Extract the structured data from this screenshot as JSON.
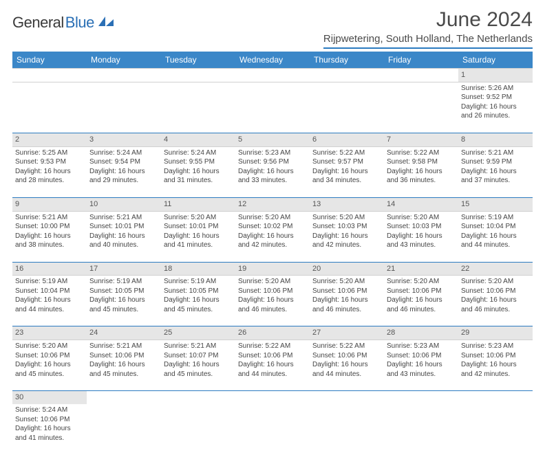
{
  "brand": {
    "part1": "General",
    "part2": "Blue"
  },
  "title": "June 2024",
  "location": "Rijpwetering, South Holland, The Netherlands",
  "colors": {
    "header_bg": "#3b87c8",
    "header_text": "#ffffff",
    "rule": "#2a7ac0",
    "daynum_bg": "#e6e6e6",
    "text": "#444444",
    "logo_blue": "#2a6fb5",
    "logo_gray": "#3a3a3a",
    "page_bg": "#ffffff"
  },
  "day_headers": [
    "Sunday",
    "Monday",
    "Tuesday",
    "Wednesday",
    "Thursday",
    "Friday",
    "Saturday"
  ],
  "weeks": [
    {
      "nums": [
        "",
        "",
        "",
        "",
        "",
        "",
        "1"
      ],
      "cells": [
        null,
        null,
        null,
        null,
        null,
        null,
        {
          "sr": "Sunrise: 5:26 AM",
          "ss": "Sunset: 9:52 PM",
          "d1": "Daylight: 16 hours",
          "d2": "and 26 minutes."
        }
      ]
    },
    {
      "nums": [
        "2",
        "3",
        "4",
        "5",
        "6",
        "7",
        "8"
      ],
      "cells": [
        {
          "sr": "Sunrise: 5:25 AM",
          "ss": "Sunset: 9:53 PM",
          "d1": "Daylight: 16 hours",
          "d2": "and 28 minutes."
        },
        {
          "sr": "Sunrise: 5:24 AM",
          "ss": "Sunset: 9:54 PM",
          "d1": "Daylight: 16 hours",
          "d2": "and 29 minutes."
        },
        {
          "sr": "Sunrise: 5:24 AM",
          "ss": "Sunset: 9:55 PM",
          "d1": "Daylight: 16 hours",
          "d2": "and 31 minutes."
        },
        {
          "sr": "Sunrise: 5:23 AM",
          "ss": "Sunset: 9:56 PM",
          "d1": "Daylight: 16 hours",
          "d2": "and 33 minutes."
        },
        {
          "sr": "Sunrise: 5:22 AM",
          "ss": "Sunset: 9:57 PM",
          "d1": "Daylight: 16 hours",
          "d2": "and 34 minutes."
        },
        {
          "sr": "Sunrise: 5:22 AM",
          "ss": "Sunset: 9:58 PM",
          "d1": "Daylight: 16 hours",
          "d2": "and 36 minutes."
        },
        {
          "sr": "Sunrise: 5:21 AM",
          "ss": "Sunset: 9:59 PM",
          "d1": "Daylight: 16 hours",
          "d2": "and 37 minutes."
        }
      ]
    },
    {
      "nums": [
        "9",
        "10",
        "11",
        "12",
        "13",
        "14",
        "15"
      ],
      "cells": [
        {
          "sr": "Sunrise: 5:21 AM",
          "ss": "Sunset: 10:00 PM",
          "d1": "Daylight: 16 hours",
          "d2": "and 38 minutes."
        },
        {
          "sr": "Sunrise: 5:21 AM",
          "ss": "Sunset: 10:01 PM",
          "d1": "Daylight: 16 hours",
          "d2": "and 40 minutes."
        },
        {
          "sr": "Sunrise: 5:20 AM",
          "ss": "Sunset: 10:01 PM",
          "d1": "Daylight: 16 hours",
          "d2": "and 41 minutes."
        },
        {
          "sr": "Sunrise: 5:20 AM",
          "ss": "Sunset: 10:02 PM",
          "d1": "Daylight: 16 hours",
          "d2": "and 42 minutes."
        },
        {
          "sr": "Sunrise: 5:20 AM",
          "ss": "Sunset: 10:03 PM",
          "d1": "Daylight: 16 hours",
          "d2": "and 42 minutes."
        },
        {
          "sr": "Sunrise: 5:20 AM",
          "ss": "Sunset: 10:03 PM",
          "d1": "Daylight: 16 hours",
          "d2": "and 43 minutes."
        },
        {
          "sr": "Sunrise: 5:19 AM",
          "ss": "Sunset: 10:04 PM",
          "d1": "Daylight: 16 hours",
          "d2": "and 44 minutes."
        }
      ]
    },
    {
      "nums": [
        "16",
        "17",
        "18",
        "19",
        "20",
        "21",
        "22"
      ],
      "cells": [
        {
          "sr": "Sunrise: 5:19 AM",
          "ss": "Sunset: 10:04 PM",
          "d1": "Daylight: 16 hours",
          "d2": "and 44 minutes."
        },
        {
          "sr": "Sunrise: 5:19 AM",
          "ss": "Sunset: 10:05 PM",
          "d1": "Daylight: 16 hours",
          "d2": "and 45 minutes."
        },
        {
          "sr": "Sunrise: 5:19 AM",
          "ss": "Sunset: 10:05 PM",
          "d1": "Daylight: 16 hours",
          "d2": "and 45 minutes."
        },
        {
          "sr": "Sunrise: 5:20 AM",
          "ss": "Sunset: 10:06 PM",
          "d1": "Daylight: 16 hours",
          "d2": "and 46 minutes."
        },
        {
          "sr": "Sunrise: 5:20 AM",
          "ss": "Sunset: 10:06 PM",
          "d1": "Daylight: 16 hours",
          "d2": "and 46 minutes."
        },
        {
          "sr": "Sunrise: 5:20 AM",
          "ss": "Sunset: 10:06 PM",
          "d1": "Daylight: 16 hours",
          "d2": "and 46 minutes."
        },
        {
          "sr": "Sunrise: 5:20 AM",
          "ss": "Sunset: 10:06 PM",
          "d1": "Daylight: 16 hours",
          "d2": "and 46 minutes."
        }
      ]
    },
    {
      "nums": [
        "23",
        "24",
        "25",
        "26",
        "27",
        "28",
        "29"
      ],
      "cells": [
        {
          "sr": "Sunrise: 5:20 AM",
          "ss": "Sunset: 10:06 PM",
          "d1": "Daylight: 16 hours",
          "d2": "and 45 minutes."
        },
        {
          "sr": "Sunrise: 5:21 AM",
          "ss": "Sunset: 10:06 PM",
          "d1": "Daylight: 16 hours",
          "d2": "and 45 minutes."
        },
        {
          "sr": "Sunrise: 5:21 AM",
          "ss": "Sunset: 10:07 PM",
          "d1": "Daylight: 16 hours",
          "d2": "and 45 minutes."
        },
        {
          "sr": "Sunrise: 5:22 AM",
          "ss": "Sunset: 10:06 PM",
          "d1": "Daylight: 16 hours",
          "d2": "and 44 minutes."
        },
        {
          "sr": "Sunrise: 5:22 AM",
          "ss": "Sunset: 10:06 PM",
          "d1": "Daylight: 16 hours",
          "d2": "and 44 minutes."
        },
        {
          "sr": "Sunrise: 5:23 AM",
          "ss": "Sunset: 10:06 PM",
          "d1": "Daylight: 16 hours",
          "d2": "and 43 minutes."
        },
        {
          "sr": "Sunrise: 5:23 AM",
          "ss": "Sunset: 10:06 PM",
          "d1": "Daylight: 16 hours",
          "d2": "and 42 minutes."
        }
      ]
    },
    {
      "nums": [
        "30",
        "",
        "",
        "",
        "",
        "",
        ""
      ],
      "cells": [
        {
          "sr": "Sunrise: 5:24 AM",
          "ss": "Sunset: 10:06 PM",
          "d1": "Daylight: 16 hours",
          "d2": "and 41 minutes."
        },
        null,
        null,
        null,
        null,
        null,
        null
      ]
    }
  ]
}
